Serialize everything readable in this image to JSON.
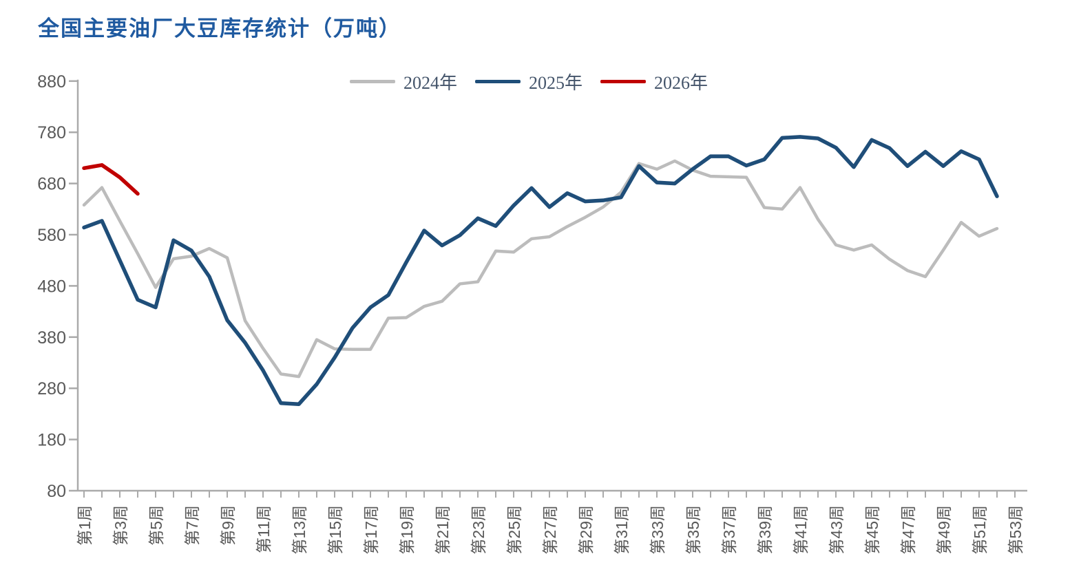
{
  "title": "全国主要油厂大豆库存统计（万吨）",
  "colors": {
    "title": "#1f5aa0",
    "axis": "#aaaaaa",
    "tick_label": "#595959",
    "legend_label": "#44546a",
    "series_2024": "#bcbcbc",
    "series_2025": "#1f4e79",
    "series_2026": "#c00000"
  },
  "legend": [
    {
      "label": "2024年"
    },
    {
      "label": "2025年"
    },
    {
      "label": "2026年"
    }
  ],
  "chart_data": {
    "type": "line",
    "title": "全国主要油厂大豆库存统计（万吨）",
    "xlabel": "",
    "ylabel": "",
    "ylim": [
      80,
      880
    ],
    "y_ticks": [
      880,
      780,
      680,
      580,
      480,
      380,
      280,
      180,
      80
    ],
    "x_range_weeks": [
      1,
      53
    ],
    "x_tick_labels": [
      "第1周",
      "第3周",
      "第5周",
      "第7周",
      "第9周",
      "第11周",
      "第13周",
      "第15周",
      "第17周",
      "第19周",
      "第21周",
      "第23周",
      "第25周",
      "第27周",
      "第29周",
      "第31周",
      "第33周",
      "第35周",
      "第37周",
      "第39周",
      "第41周",
      "第43周",
      "第45周",
      "第47周",
      "第49周",
      "第51周",
      "第53周"
    ],
    "grid": false,
    "legend_position": "top",
    "series": [
      {
        "name": "2024年",
        "color": "#bcbcbc",
        "start_week": 1,
        "values": [
          638,
          672,
          607,
          543,
          477,
          533,
          538,
          553,
          535,
          412,
          358,
          308,
          303,
          375,
          357,
          356,
          356,
          417,
          418,
          440,
          450,
          484,
          488,
          548,
          546,
          572,
          576,
          596,
          614,
          634,
          663,
          719,
          708,
          724,
          706,
          694,
          693,
          692,
          633,
          630,
          672,
          610,
          560,
          550,
          560,
          532,
          510,
          498,
          550,
          604,
          577,
          592
        ]
      },
      {
        "name": "2025年",
        "color": "#1f4e79",
        "start_week": 1,
        "values": [
          594,
          607,
          530,
          453,
          438,
          569,
          549,
          498,
          413,
          369,
          315,
          251,
          249,
          288,
          340,
          398,
          438,
          462,
          526,
          588,
          559,
          579,
          612,
          597,
          637,
          671,
          634,
          661,
          645,
          647,
          653,
          714,
          682,
          680,
          708,
          733,
          733,
          715,
          727,
          769,
          771,
          768,
          750,
          712,
          765,
          749,
          714,
          742,
          714,
          743,
          727,
          655
        ]
      },
      {
        "name": "2026年",
        "color": "#c00000",
        "start_week": 1,
        "values": [
          710,
          716,
          692,
          660
        ]
      }
    ]
  }
}
